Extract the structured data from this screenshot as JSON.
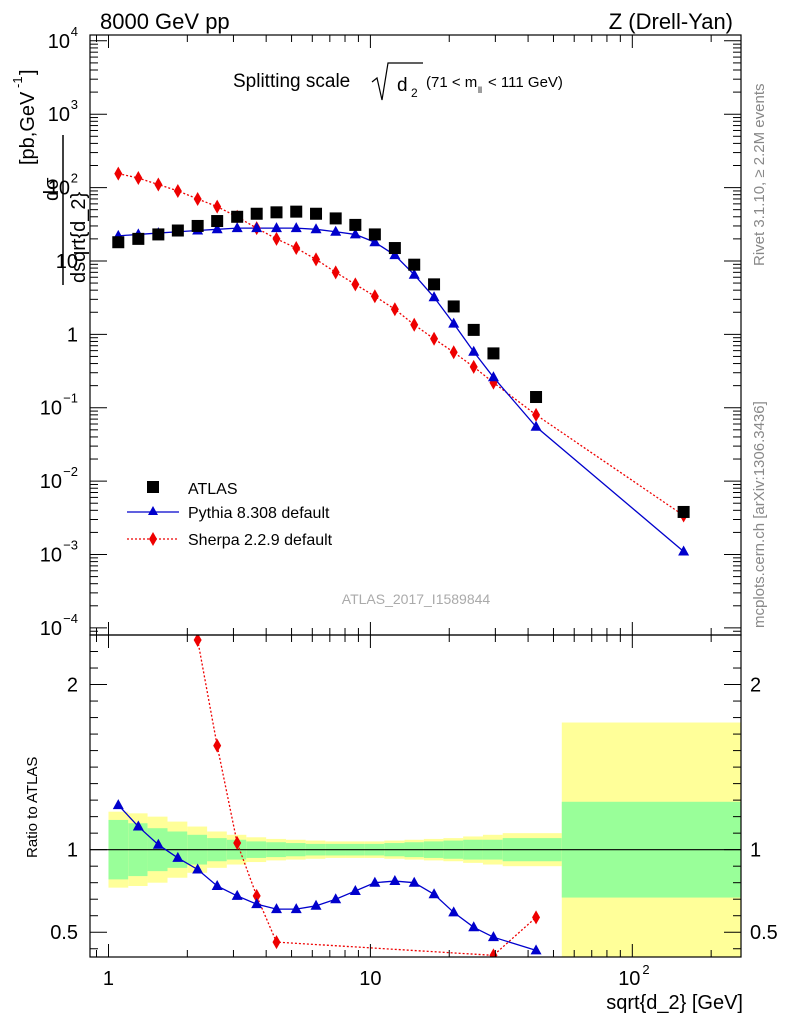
{
  "header": {
    "left": "8000 GeV pp",
    "right": "Z (Drell-Yan)"
  },
  "side_labels": {
    "rivet": "Rivet 3.1.10, ≥ 2.2M events",
    "mcplots": "mcplots.cern.ch [arXiv:1306.3436]"
  },
  "chart_data": {
    "type": "scatter",
    "title_main": "Splitting scale",
    "title_var": "d",
    "title_var_sub": "2",
    "title_range": "(71 < m",
    "title_range_sub": "ll",
    "title_range_end": " < 111 GeV)",
    "watermark": "ATLAS_2017_I1589844",
    "xlabel": "sqrt{d_2} [GeV]",
    "ylabel": "dσ / dsqrt{d_2} [pb,GeV⁻¹]",
    "ratio_ylabel": "Ratio to ATLAS",
    "x_scale": "log",
    "xlim": [
      0.85,
      260
    ],
    "x_ticks": [
      {
        "v": 1,
        "label": "1"
      },
      {
        "v": 10,
        "label": "10"
      },
      {
        "v": 100,
        "label": "10²"
      }
    ],
    "main": {
      "y_scale": "log",
      "ylim": [
        8e-05,
        12000
      ],
      "y_ticks": [
        {
          "v": 0.0001,
          "m": "10",
          "e": "−4"
        },
        {
          "v": 0.001,
          "m": "10",
          "e": "−3"
        },
        {
          "v": 0.01,
          "m": "10",
          "e": "−2"
        },
        {
          "v": 0.1,
          "m": "10",
          "e": "−1"
        },
        {
          "v": 1,
          "m": "1",
          "e": ""
        },
        {
          "v": 10,
          "m": "10",
          "e": ""
        },
        {
          "v": 100,
          "m": "10",
          "e": "2"
        },
        {
          "v": 1000,
          "m": "10",
          "e": "3"
        },
        {
          "v": 10000,
          "m": "10",
          "e": "4"
        }
      ]
    },
    "ratio": {
      "ylim": [
        0.35,
        2.3
      ],
      "y_ticks": [
        {
          "v": 0.5,
          "label": "0.5"
        },
        {
          "v": 1,
          "label": "1"
        },
        {
          "v": 2,
          "label": "2"
        }
      ]
    },
    "legend": {
      "placement": "bottom-left",
      "entries": [
        "ATLAS",
        "Pythia 8.308 default",
        "Sherpa 2.2.9 default"
      ]
    },
    "colors": {
      "data": "#000000",
      "pythia": "#0000cc",
      "sherpa": "#ee0000",
      "band_stat": "#99ff99",
      "band_total": "#ffff99"
    },
    "bins": [
      1.0,
      1.19,
      1.41,
      1.68,
      2.0,
      2.38,
      2.83,
      3.36,
      4.0,
      4.76,
      5.66,
      6.73,
      8.0,
      9.51,
      11.3,
      13.5,
      16.0,
      19.0,
      22.6,
      26.9,
      32.0,
      53.8,
      260.0
    ],
    "series": [
      {
        "name": "ATLAS",
        "x": [
          1.09,
          1.3,
          1.55,
          1.84,
          2.19,
          2.6,
          3.1,
          3.68,
          4.38,
          5.21,
          6.2,
          7.37,
          8.76,
          10.4,
          12.4,
          14.7,
          17.5,
          20.8,
          24.8,
          29.5,
          42.9,
          157
        ],
        "y": [
          18,
          20,
          23,
          26,
          30,
          35,
          40,
          44,
          46,
          47,
          44,
          38,
          31,
          23,
          15,
          8.9,
          4.8,
          2.4,
          1.15,
          0.55,
          0.14,
          0.0038
        ]
      },
      {
        "name": "Pythia 8.308 default",
        "x": [
          1.09,
          1.3,
          1.55,
          1.84,
          2.19,
          2.6,
          3.1,
          3.68,
          4.38,
          5.21,
          6.2,
          7.37,
          8.76,
          10.4,
          12.4,
          14.7,
          17.5,
          20.8,
          24.8,
          29.5,
          42.9,
          157
        ],
        "y": [
          22,
          23,
          24,
          25,
          26,
          27,
          28,
          28,
          28,
          28,
          27,
          25,
          23,
          18,
          12,
          6.5,
          3.2,
          1.4,
          0.58,
          0.26,
          0.055,
          0.0011
        ]
      },
      {
        "name": "Sherpa 2.2.9 default",
        "x": [
          1.09,
          1.3,
          1.55,
          1.84,
          2.19,
          2.6,
          3.1,
          3.68,
          4.38,
          5.21,
          6.2,
          7.37,
          8.76,
          10.4,
          12.4,
          14.7,
          17.5,
          20.8,
          24.8,
          29.5,
          42.9,
          157
        ],
        "y": [
          155,
          135,
          110,
          90,
          70,
          55,
          40,
          28,
          20,
          15,
          10.5,
          7,
          4.8,
          3.3,
          2.2,
          1.35,
          0.87,
          0.57,
          0.36,
          0.22,
          0.08,
          0.0034
        ]
      }
    ],
    "ratio_series": [
      {
        "name": "Pythia 8.308 default",
        "x": [
          1.09,
          1.3,
          1.55,
          1.84,
          2.19,
          2.6,
          3.1,
          3.68,
          4.38,
          5.21,
          6.2,
          7.37,
          8.76,
          10.4,
          12.4,
          14.7,
          17.5,
          20.8,
          24.8,
          29.5,
          42.9
        ],
        "y": [
          1.27,
          1.14,
          1.03,
          0.95,
          0.88,
          0.78,
          0.72,
          0.67,
          0.64,
          0.64,
          0.66,
          0.7,
          0.75,
          0.8,
          0.81,
          0.8,
          0.73,
          0.62,
          0.53,
          0.47,
          0.39
        ]
      },
      {
        "name": "Sherpa 2.2.9 default",
        "x": [
          2.19,
          2.6,
          3.1,
          3.68,
          4.38,
          29.5,
          42.9
        ],
        "y": [
          2.27,
          1.63,
          1.04,
          0.72,
          0.44,
          0.36,
          0.59
        ]
      }
    ],
    "bands": {
      "stat_lo": [
        0.82,
        0.84,
        0.87,
        0.89,
        0.91,
        0.93,
        0.94,
        0.95,
        0.955,
        0.96,
        0.965,
        0.965,
        0.965,
        0.965,
        0.96,
        0.955,
        0.95,
        0.945,
        0.94,
        0.94,
        0.93,
        0.71
      ],
      "stat_hi": [
        1.18,
        1.16,
        1.13,
        1.11,
        1.09,
        1.07,
        1.06,
        1.05,
        1.045,
        1.04,
        1.035,
        1.035,
        1.035,
        1.035,
        1.04,
        1.045,
        1.05,
        1.055,
        1.06,
        1.06,
        1.07,
        1.29
      ],
      "total_lo": [
        0.77,
        0.78,
        0.8,
        0.83,
        0.86,
        0.89,
        0.91,
        0.925,
        0.935,
        0.94,
        0.945,
        0.95,
        0.95,
        0.95,
        0.945,
        0.94,
        0.935,
        0.93,
        0.92,
        0.91,
        0.9,
        0.35
      ],
      "total_hi": [
        1.23,
        1.22,
        1.2,
        1.17,
        1.14,
        1.11,
        1.09,
        1.075,
        1.065,
        1.06,
        1.055,
        1.05,
        1.05,
        1.05,
        1.055,
        1.06,
        1.065,
        1.07,
        1.08,
        1.09,
        1.1,
        1.77
      ]
    }
  }
}
